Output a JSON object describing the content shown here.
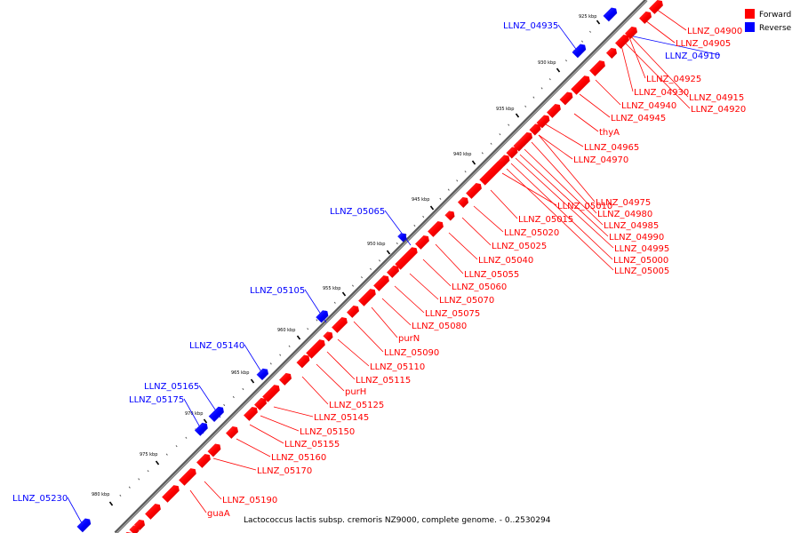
{
  "legend": {
    "forward_label": "Forward",
    "reverse_label": "Reverse",
    "forward_color": "#ff0000",
    "reverse_color": "#0000ff"
  },
  "caption": "Lactococcus lactis subsp. cremoris NZ9000, complete genome. - 0..2530294",
  "tick_labels": [
    "925 kbp",
    "930 kbp",
    "935 kbp",
    "940 kbp",
    "945 kbp",
    "950 kbp",
    "955 kbp",
    "960 kbp",
    "965 kbp",
    "970 kbp",
    "975 kbp",
    "980 kbp"
  ],
  "genes_forward": [
    "LLNZ_04900",
    "LLNZ_04905",
    "LLNZ_04925",
    "LLNZ_04930",
    "LLNZ_04915",
    "LLNZ_04920",
    "LLNZ_04940",
    "LLNZ_04945",
    "thyA",
    "LLNZ_04965",
    "LLNZ_04970",
    "LLNZ_04975",
    "LLNZ_04980",
    "LLNZ_04985",
    "LLNZ_04990",
    "LLNZ_04995",
    "LLNZ_05000",
    "LLNZ_05005",
    "LLNZ_05010",
    "LLNZ_05015",
    "LLNZ_05020",
    "LLNZ_05025",
    "LLNZ_05040",
    "LLNZ_05055",
    "LLNZ_05060",
    "LLNZ_05070",
    "LLNZ_05075",
    "LLNZ_05080",
    "purN",
    "LLNZ_05090",
    "LLNZ_05110",
    "LLNZ_05115",
    "purH",
    "LLNZ_05125",
    "LLNZ_05145",
    "LLNZ_05150",
    "LLNZ_05155",
    "LLNZ_05160",
    "LLNZ_05170",
    "LLNZ_05190",
    "guaA"
  ],
  "genes_reverse": [
    "LLNZ_04935",
    "LLNZ_04910",
    "LLNZ_05065",
    "LLNZ_05105",
    "LLNZ_05140",
    "LLNZ_05165",
    "LLNZ_05175",
    "LLNZ_05230"
  ]
}
